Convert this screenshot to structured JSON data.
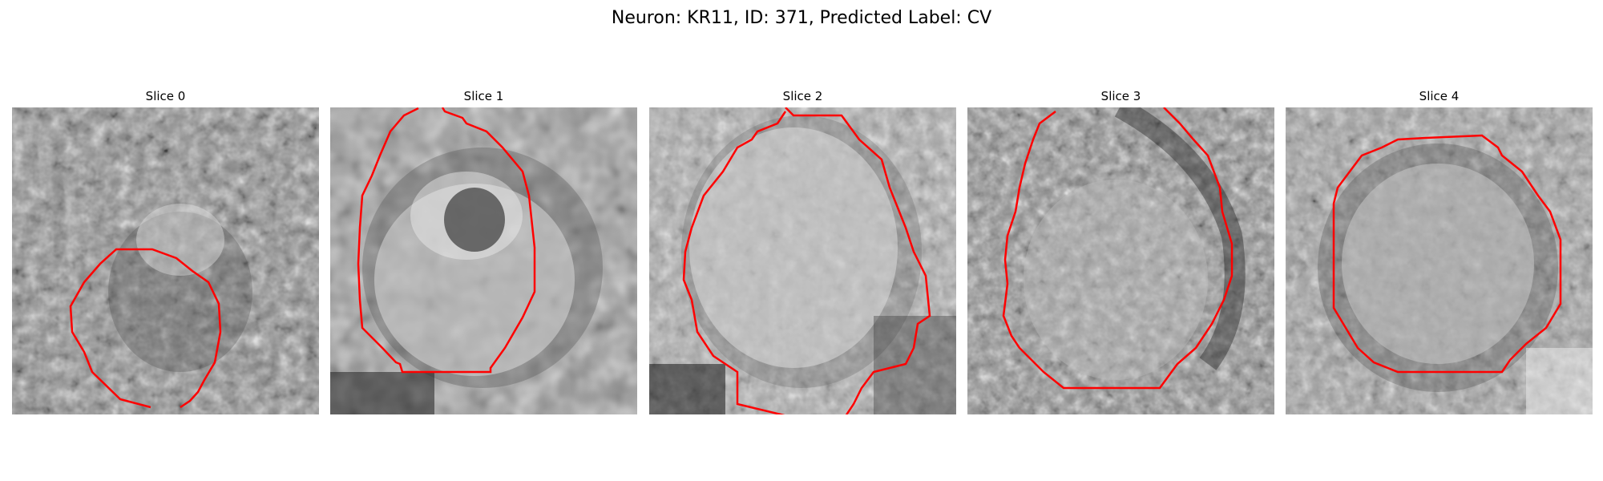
{
  "figure": {
    "title": "Neuron: KR11, ID: 371, Predicted Label: CV"
  },
  "panels": [
    {
      "title": "Slice 0"
    },
    {
      "title": "Slice 1"
    },
    {
      "title": "Slice 2"
    },
    {
      "title": "Slice 3"
    },
    {
      "title": "Slice 4"
    }
  ],
  "colors": {
    "contour": "#ff0000",
    "background": "#ffffff"
  }
}
